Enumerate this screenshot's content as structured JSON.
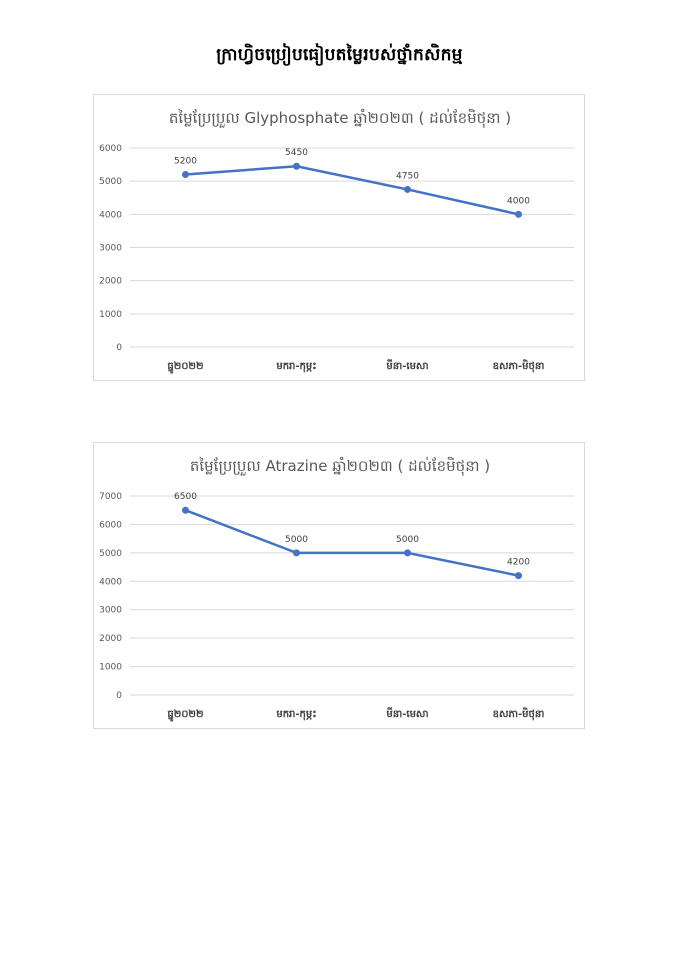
{
  "page": {
    "title": "ក្រាហ្វិចប្រៀបធៀបតម្លៃរបស់ថ្នាំកសិកម្ម"
  },
  "chart_data": [
    {
      "type": "line",
      "title": "តម្លៃប្រែប្រួល Glyphosphate ឆ្នាំ២០២៣ ( ដល់ខែមិថុនា )",
      "categories": [
        "ធ្នូ២០២២",
        "មករា-កុម្ភះ",
        "មីនា-មេសា",
        "ឧសភា-មិថុនា"
      ],
      "series": [
        {
          "values": [
            5200,
            5450,
            4750,
            4000
          ]
        }
      ],
      "data_labels": [
        "5200",
        "5450",
        "4750",
        "4000"
      ],
      "ylim": [
        0,
        6000
      ],
      "yticks": [
        0,
        1000,
        2000,
        3000,
        4000,
        5000,
        6000
      ],
      "ytick_labels": [
        "0",
        "1000",
        "2000",
        "3000",
        "4000",
        "5000",
        "6000"
      ],
      "grid": true,
      "line_color": "#4472c4"
    },
    {
      "type": "line",
      "title": "តម្លៃប្រែប្រួល Atrazine ឆ្នាំ២០២៣ ( ដល់ខែមិថុនា )",
      "categories": [
        "ធ្នូ២០២២",
        "មករា-កុម្ភះ",
        "មីនា-មេសា",
        "ឧសភា-មិថុនា"
      ],
      "series": [
        {
          "values": [
            6500,
            5000,
            5000,
            4200
          ]
        }
      ],
      "data_labels": [
        "6500",
        "5000",
        "5000",
        "4200"
      ],
      "ylim": [
        0,
        7000
      ],
      "yticks": [
        0,
        1000,
        2000,
        3000,
        4000,
        5000,
        6000,
        7000
      ],
      "ytick_labels": [
        "0",
        "1000",
        "2000",
        "3000",
        "4000",
        "5000",
        "6000",
        "7000"
      ],
      "grid": true,
      "line_color": "#4472c4"
    }
  ]
}
